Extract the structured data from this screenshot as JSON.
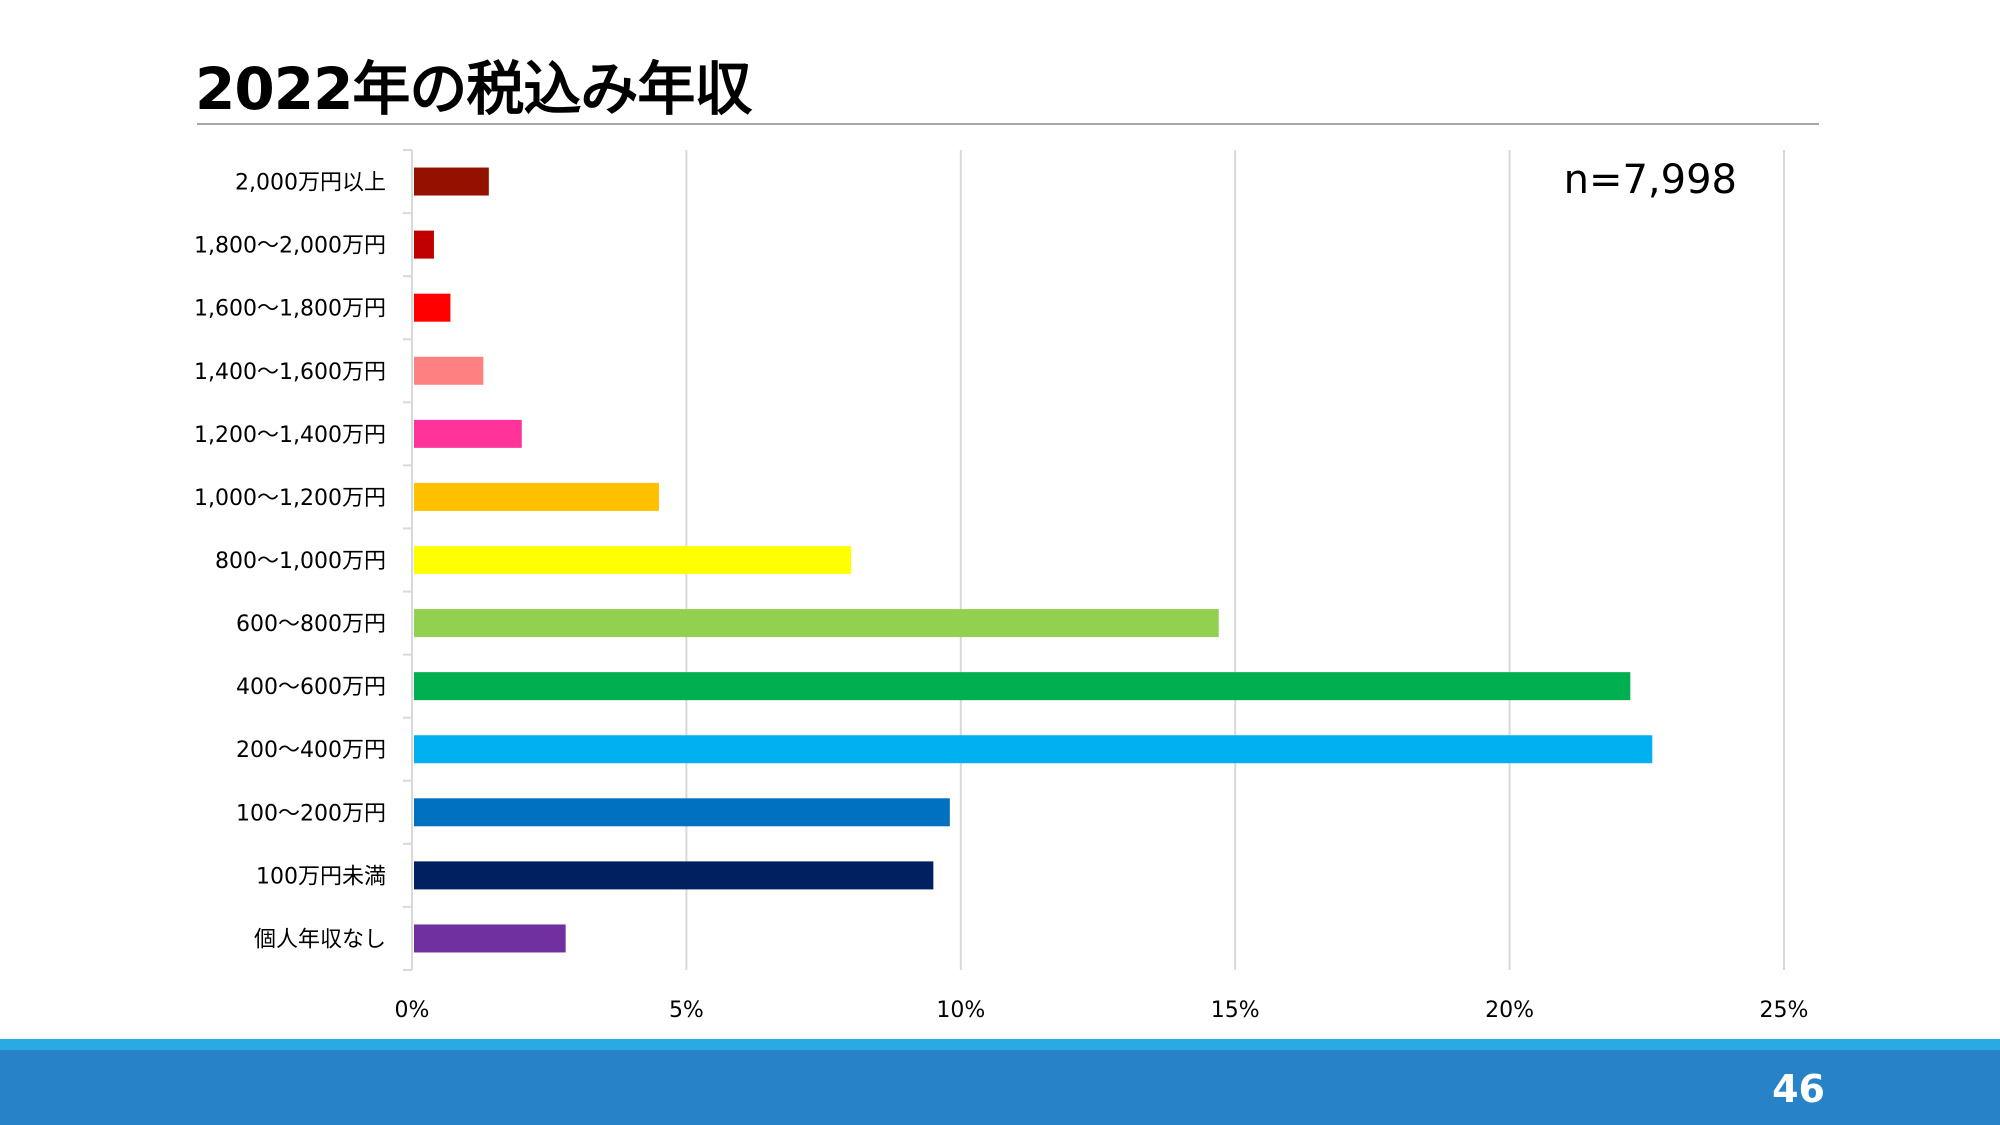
{
  "slide": {
    "title": "2022年の税込み年収",
    "page_number": "46"
  },
  "chart_data": {
    "type": "bar",
    "orientation": "horizontal",
    "annotation": "n=7,998",
    "categories": [
      "2,000万円以上",
      "1,800〜2,000万円",
      "1,600〜1,800万円",
      "1,400〜1,600万円",
      "1,200〜1,400万円",
      "1,000〜1,200万円",
      "800〜1,000万円",
      "600〜800万円",
      "400〜600万円",
      "200〜400万円",
      "100〜200万円",
      "100万円未満",
      "個人年収なし"
    ],
    "values": [
      1.4,
      0.4,
      0.7,
      1.3,
      2.0,
      4.5,
      8.0,
      14.7,
      22.2,
      22.6,
      9.8,
      9.5,
      2.8
    ],
    "colors": [
      "#941100",
      "#c00000",
      "#ff0000",
      "#ff8080",
      "#ff3399",
      "#ffc000",
      "#ffff00",
      "#92d050",
      "#00b050",
      "#00b0f0",
      "#0070c0",
      "#002060",
      "#7030a0"
    ],
    "xlim": [
      0,
      25
    ],
    "xticks": [
      0,
      5,
      10,
      15,
      20,
      25
    ],
    "xtick_labels": [
      "0%",
      "5%",
      "10%",
      "15%",
      "20%",
      "25%"
    ],
    "grid": "vertical",
    "legend": "none"
  }
}
